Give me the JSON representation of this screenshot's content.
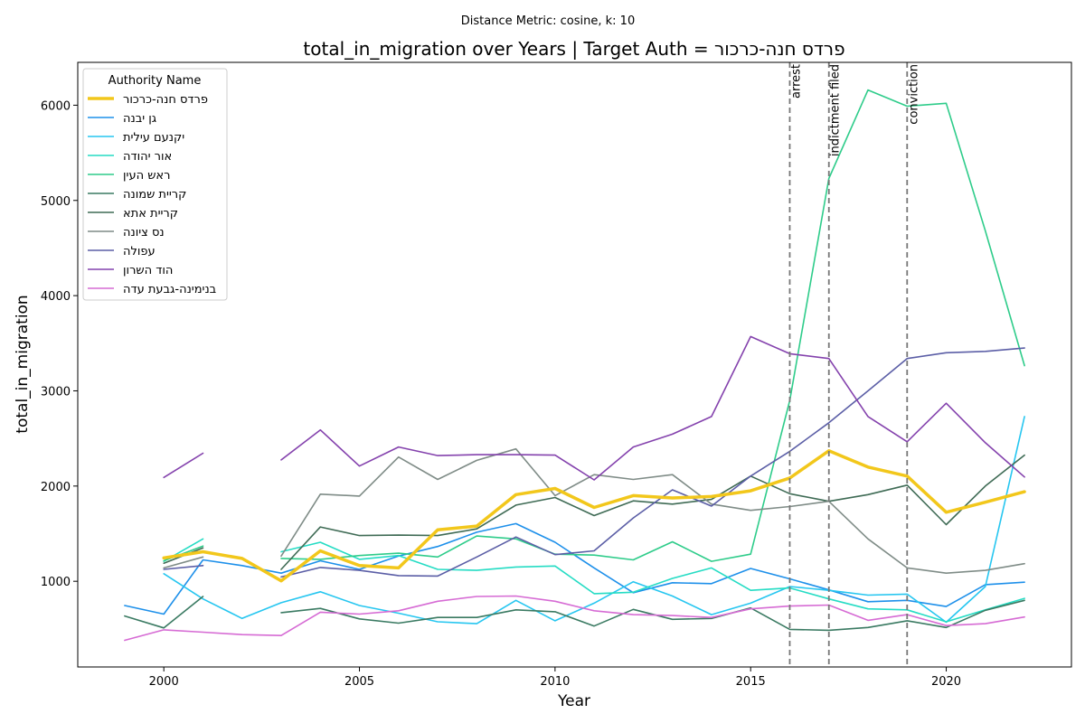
{
  "suptitle": "Distance Metric: cosine, k: 10",
  "chart_data": {
    "type": "line",
    "title": "total_in_migration over Years | Target Auth = פרדס חנה-כרכור",
    "xlabel": "Year",
    "ylabel": "total_in_migration",
    "xlim": [
      1997.8,
      2023.2
    ],
    "ylim": [
      100,
      6450
    ],
    "xticks": [
      2000,
      2005,
      2010,
      2015,
      2020
    ],
    "yticks": [
      1000,
      2000,
      3000,
      4000,
      5000,
      6000
    ],
    "grid": false,
    "legend": {
      "title": "Authority Name",
      "placement": "top-left"
    },
    "events": [
      {
        "x": 2016,
        "label": "arrest"
      },
      {
        "x": 2017,
        "label": "indictment filed"
      },
      {
        "x": 2019,
        "label": "conviction"
      }
    ],
    "x": [
      1999,
      2000,
      2001,
      2002,
      2003,
      2004,
      2005,
      2006,
      2007,
      2008,
      2009,
      2010,
      2011,
      2012,
      2013,
      2014,
      2015,
      2016,
      2017,
      2018,
      2019,
      2020,
      2021,
      2022
    ],
    "series": [
      {
        "name": "פרדס חנה-כרכור",
        "color": "#f2c71b",
        "width": 3.5,
        "target": true,
        "values": [
          null,
          1245,
          1310,
          1240,
          1005,
          1320,
          1165,
          1140,
          1540,
          1580,
          1910,
          1975,
          1775,
          1900,
          1875,
          1890,
          1950,
          2085,
          2370,
          2200,
          2105,
          1725,
          1830,
          1940
        ]
      },
      {
        "name": "גן יבנה",
        "color": "#1e90ea",
        "width": 1.6,
        "values": [
          745,
          655,
          1225,
          1165,
          1085,
          1215,
          1125,
          1265,
          1365,
          1515,
          1605,
          1410,
          1140,
          880,
          985,
          975,
          1135,
          1025,
          910,
          785,
          800,
          735,
          965,
          990
        ]
      },
      {
        "name": "יקנעם עילית",
        "color": "#26c6f0",
        "width": 1.6,
        "values": [
          null,
          1080,
          815,
          610,
          775,
          890,
          745,
          665,
          575,
          555,
          800,
          585,
          770,
          995,
          845,
          650,
          770,
          945,
          905,
          855,
          865,
          570,
          945,
          2730
        ]
      },
      {
        "name": "אור יהודה",
        "color": "#25dcc4",
        "width": 1.6,
        "values": [
          null,
          1210,
          1445,
          null,
          1310,
          1410,
          1230,
          1270,
          1125,
          1115,
          1150,
          1160,
          870,
          885,
          1030,
          1140,
          905,
          930,
          815,
          710,
          700,
          575,
          700,
          820
        ]
      },
      {
        "name": "ראש העין",
        "color": "#2ecc8a",
        "width": 1.6,
        "values": [
          null,
          1215,
          1370,
          null,
          1240,
          1230,
          1270,
          1295,
          1255,
          1475,
          1445,
          1285,
          1275,
          1225,
          1415,
          1210,
          1285,
          2900,
          5230,
          6160,
          5990,
          6020,
          4680,
          3265
        ]
      },
      {
        "name": "קריית שמונה",
        "color": "#3a7a62",
        "width": 1.6,
        "values": [
          635,
          510,
          840,
          null,
          670,
          715,
          605,
          560,
          620,
          620,
          700,
          680,
          530,
          705,
          600,
          610,
          720,
          495,
          485,
          515,
          585,
          515,
          695,
          800
        ]
      },
      {
        "name": "קריית אתא",
        "color": "#3f6b55",
        "width": 1.6,
        "values": [
          null,
          1190,
          1350,
          null,
          1125,
          1570,
          1480,
          1485,
          1480,
          1550,
          1800,
          1880,
          1690,
          1845,
          1810,
          1860,
          2105,
          1920,
          1840,
          1910,
          2010,
          1595,
          2000,
          2325
        ]
      },
      {
        "name": "נס ציונה",
        "color": "#7f8c87",
        "width": 1.6,
        "values": [
          null,
          1140,
          1255,
          null,
          1265,
          1915,
          1895,
          2305,
          2070,
          2270,
          2390,
          1900,
          2120,
          2070,
          2120,
          1810,
          1745,
          1785,
          1840,
          1445,
          1140,
          1085,
          1115,
          1185
        ]
      },
      {
        "name": "עפולה",
        "color": "#5b5ea6",
        "width": 1.6,
        "values": [
          null,
          1125,
          1165,
          null,
          1045,
          1145,
          1115,
          1060,
          1055,
          1255,
          1465,
          1280,
          1320,
          1665,
          1960,
          1790,
          2105,
          2365,
          2665,
          3000,
          3340,
          3400,
          3415,
          3450
        ]
      },
      {
        "name": "הוד השרון",
        "color": "#8442ad",
        "width": 1.6,
        "values": [
          null,
          2090,
          2345,
          null,
          2275,
          2590,
          2210,
          2410,
          2320,
          2330,
          2330,
          2325,
          2065,
          2410,
          2545,
          2730,
          3570,
          3390,
          3340,
          2730,
          2465,
          2870,
          2455,
          2095
        ]
      },
      {
        "name": "בנימינה-גבעת עדה",
        "color": "#d66bd4",
        "width": 1.6,
        "values": [
          380,
          490,
          465,
          440,
          430,
          675,
          655,
          690,
          790,
          840,
          845,
          790,
          690,
          650,
          640,
          620,
          710,
          740,
          750,
          590,
          650,
          535,
          555,
          625
        ]
      }
    ]
  }
}
